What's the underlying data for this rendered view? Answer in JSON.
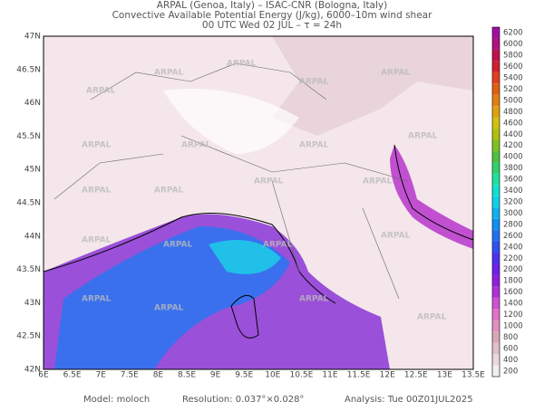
{
  "header": {
    "line1": "ARPAL (Genoa, Italy)  –  ISAC-CNR (Bologna, Italy)",
    "line2": "Convective Available Potential Energy (J/kg), 6000–10m wind shear",
    "line3": "00 UTC Wed 02 JUL  –  τ = 24h"
  },
  "map": {
    "watermark": "ARPAL",
    "lon_labels": [
      "6E",
      "6.5E",
      "7E",
      "7.5E",
      "8E",
      "8.5E",
      "9E",
      "9.5E",
      "10E",
      "10.5E",
      "11E",
      "11.5E",
      "12E",
      "12.5E",
      "13E",
      "13.5E"
    ],
    "lat_labels": [
      "42N",
      "42.5N",
      "43N",
      "43.5N",
      "44N",
      "44.5N",
      "45N",
      "45.5N",
      "46N",
      "46.5N",
      "47N"
    ]
  },
  "colorbar": {
    "levels": [
      200,
      400,
      600,
      800,
      1000,
      1200,
      1400,
      1600,
      1800,
      2000,
      2200,
      2400,
      2600,
      2800,
      3000,
      3200,
      3400,
      3600,
      3800,
      4000,
      4200,
      4400,
      4600,
      4800,
      5000,
      5200,
      5400,
      5600,
      5800,
      6000,
      6200
    ],
    "colors": [
      "#f0f0f0",
      "#e8d8dc",
      "#e0c0c8",
      "#d8a8b8",
      "#e090c0",
      "#e070c8",
      "#d050d0",
      "#b030d8",
      "#9020e0",
      "#7020e8",
      "#5030f0",
      "#3050f0",
      "#2070f0",
      "#1090f0",
      "#10b0f0",
      "#10d0e8",
      "#10e0d0",
      "#20e0a0",
      "#30d070",
      "#50c040",
      "#80c020",
      "#b0c010",
      "#d0c010",
      "#e0a010",
      "#e08010",
      "#e06010",
      "#e04020",
      "#d02030",
      "#c01050",
      "#b01080",
      "#a010a0"
    ]
  },
  "footer": {
    "model": "Model: moloch",
    "resolution": "Resolution: 0.037°×0.028°",
    "analysis": "Analysis: Tue 00Z01JUL2025"
  }
}
